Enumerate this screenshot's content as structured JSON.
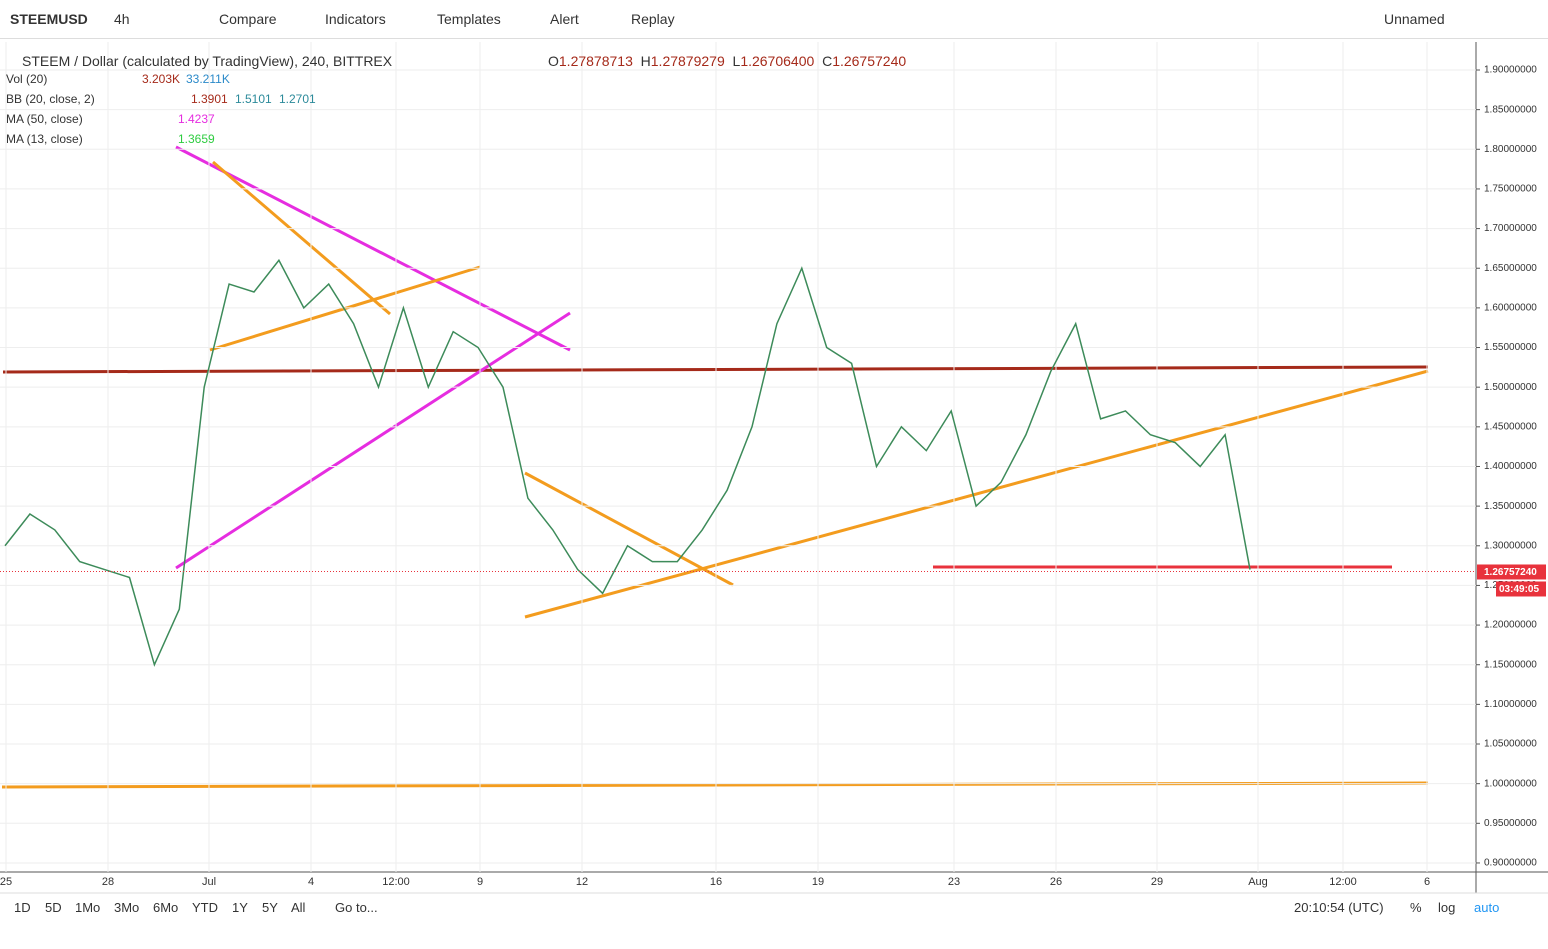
{
  "toolbar": {
    "symbol": "STEEMUSD",
    "interval": "4h",
    "compare": "Compare",
    "indicators": "Indicators",
    "templates": "Templates",
    "alert": "Alert",
    "replay": "Replay",
    "layout": "Unnamed"
  },
  "legend": {
    "title": "STEEM / Dollar (calculated by TradingView), 240, BITTREX",
    "open_label": "O",
    "open": "1.27878713",
    "high_label": "H",
    "high": "1.27879279",
    "low_label": "L",
    "low": "1.26706400",
    "close_label": "C",
    "close": "1.26757240",
    "indicators": [
      {
        "name": "Vol (20)",
        "values": [
          "3.203K",
          "33.211K"
        ]
      },
      {
        "name": "BB (20, close, 2)",
        "values": [
          "1.3901",
          "1.5101",
          "1.2701"
        ]
      },
      {
        "name": "MA (50, close)",
        "values": [
          "1.4237"
        ]
      },
      {
        "name": "MA (13, close)",
        "values": [
          "1.3659"
        ]
      }
    ]
  },
  "chart_data": {
    "type": "line",
    "values": [
      1.3,
      1.34,
      1.32,
      1.28,
      1.27,
      1.26,
      1.15,
      1.22,
      1.5,
      1.63,
      1.62,
      1.66,
      1.6,
      1.63,
      1.58,
      1.5,
      1.6,
      1.5,
      1.57,
      1.55,
      1.5,
      1.36,
      1.32,
      1.27,
      1.24,
      1.3,
      1.28,
      1.28,
      1.32,
      1.37,
      1.45,
      1.58,
      1.65,
      1.55,
      1.53,
      1.4,
      1.45,
      1.42,
      1.47,
      1.35,
      1.38,
      1.44,
      1.52,
      1.58,
      1.46,
      1.47,
      1.44,
      1.43,
      1.4,
      1.44,
      1.27
    ],
    "color": "#3d8b5a",
    "ylim": [
      0.8886,
      1.9353
    ],
    "yticks": [
      {
        "value": 0.9,
        "label": "0.90000000"
      },
      {
        "value": 0.95,
        "label": "0.95000000"
      },
      {
        "value": 1.0,
        "label": "1.00000000"
      },
      {
        "value": 1.05,
        "label": "1.05000000"
      },
      {
        "value": 1.1,
        "label": "1.10000000"
      },
      {
        "value": 1.15,
        "label": "1.15000000"
      },
      {
        "value": 1.2,
        "label": "1.20000000"
      },
      {
        "value": 1.25,
        "label": "1.25000000"
      },
      {
        "value": 1.3,
        "label": "1.30000000"
      },
      {
        "value": 1.35,
        "label": "1.35000000"
      },
      {
        "value": 1.4,
        "label": "1.40000000"
      },
      {
        "value": 1.45,
        "label": "1.45000000"
      },
      {
        "value": 1.5,
        "label": "1.50000000"
      },
      {
        "value": 1.55,
        "label": "1.55000000"
      },
      {
        "value": 1.6,
        "label": "1.60000000"
      },
      {
        "value": 1.65,
        "label": "1.65000000"
      },
      {
        "value": 1.7,
        "label": "1.70000000"
      },
      {
        "value": 1.75,
        "label": "1.75000000"
      },
      {
        "value": 1.8,
        "label": "1.80000000"
      },
      {
        "value": 1.85,
        "label": "1.85000000"
      },
      {
        "value": 1.9,
        "label": "1.90000000"
      }
    ],
    "grid": true,
    "time_labels": [
      "25",
      "28",
      "Jul",
      "4",
      "12:00",
      "9",
      "12",
      "16",
      "19",
      "23",
      "26",
      "29",
      "Aug",
      "12:00",
      "6"
    ],
    "last_price": {
      "value": 1.2675724,
      "label": "1.26757240"
    },
    "countdown": "03:49:05"
  },
  "bottom_bar": {
    "ranges": [
      "1D",
      "5D",
      "1Mo",
      "3Mo",
      "6Mo",
      "YTD",
      "1Y",
      "5Y",
      "All"
    ],
    "goto": "Go to...",
    "clock": "20:10:54 (UTC)",
    "percent": "%",
    "log": "log",
    "auto": "auto"
  }
}
